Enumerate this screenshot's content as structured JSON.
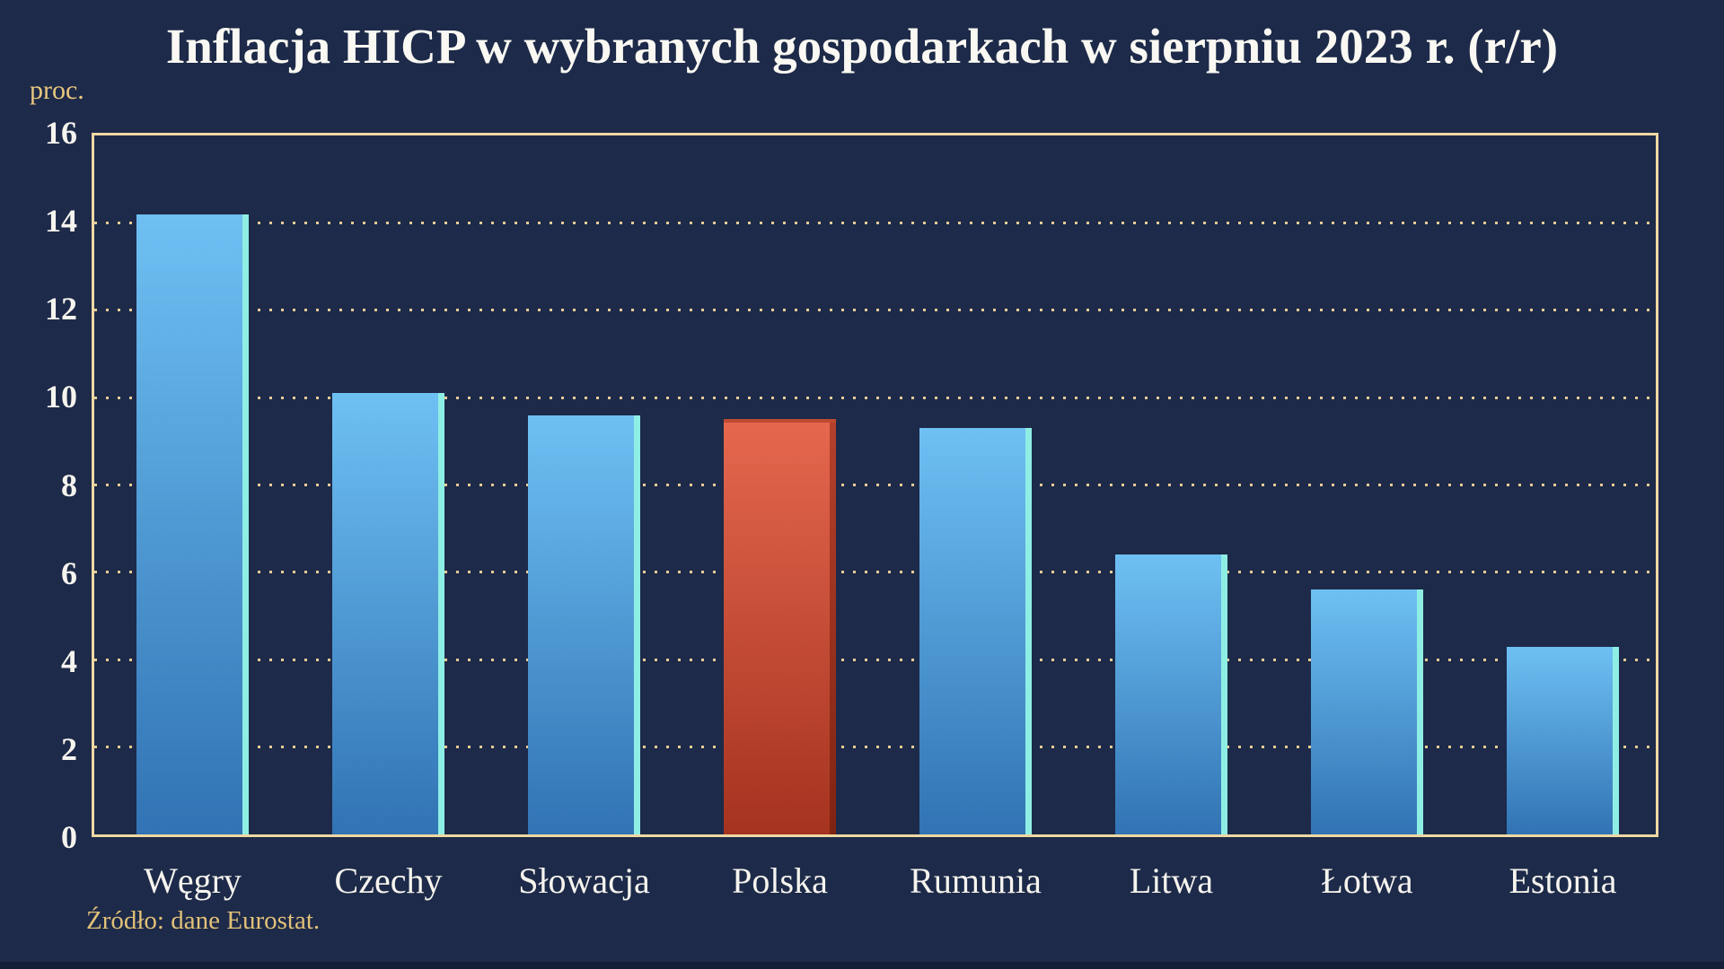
{
  "page": {
    "title": "Inflacja HICP w wybranych gospodarkach w sierpniu 2023 r. (r/r)",
    "y_axis_unit_label": "proc.",
    "source_note": "Źródło: dane Eurostat."
  },
  "colors": {
    "background": "#1d2a49",
    "frame_and_grid_gold": "#efd8a3",
    "gold_text": "#e9c77e",
    "white_text": "#f6f4ee",
    "bar_blue_top": "#6ec0f3",
    "bar_blue_bottom": "#3173b4",
    "bar_blue_right_edge_cyan": "#8feee4",
    "bar_red_top": "#e5674e",
    "bar_red_bottom": "#a5331f",
    "bar_red_right_edge": "#8c2715"
  },
  "chart_data": {
    "type": "bar",
    "title": "Inflacja HICP w wybranych gospodarkach w sierpniu 2023 r. (r/r)",
    "ylabel": "proc.",
    "xlabel": "",
    "categories": [
      "Węgry",
      "Czechy",
      "Słowacja",
      "Polska",
      "Rumunia",
      "Litwa",
      "Łotwa",
      "Estonia"
    ],
    "values": [
      14.2,
      10.1,
      9.6,
      9.5,
      9.3,
      6.4,
      5.6,
      4.3
    ],
    "highlight_index": 3,
    "highlight_category": "Polska",
    "highlight_color_meaning": "Polska wyróżniona na czerwono, pozostałe kraje na niebiesko",
    "ylim": [
      0,
      16
    ],
    "yticks": [
      0,
      2,
      4,
      6,
      8,
      10,
      12,
      14,
      16
    ],
    "grid": "horizontal dotted gold lines at ticks 2-14",
    "legend": "none",
    "source": "Źródło: dane Eurostat."
  }
}
